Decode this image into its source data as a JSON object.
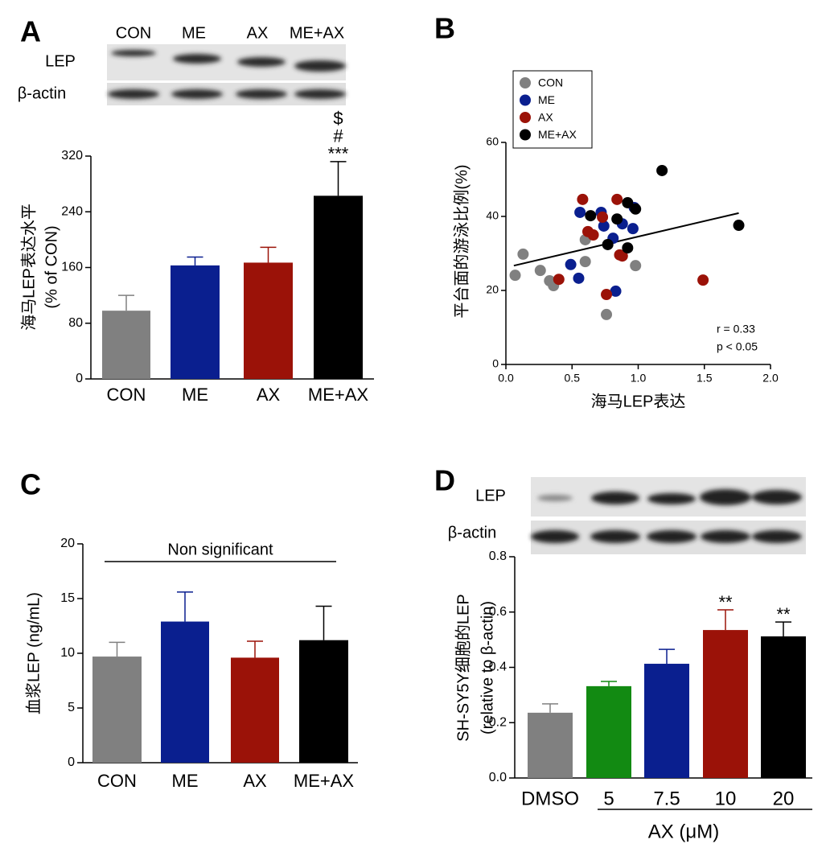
{
  "chart_data": [
    {
      "type": "bar",
      "panel_label": "A",
      "blot_labels": [
        "LEP",
        "β-actin"
      ],
      "categories": [
        "CON",
        "ME",
        "AX",
        "ME+AX"
      ],
      "values": [
        98,
        163,
        167,
        263
      ],
      "errors": [
        22,
        12,
        22,
        49
      ],
      "colors": [
        "#808080",
        "#0a1f8f",
        "#9b1208",
        "#000000"
      ],
      "significance": [
        null,
        null,
        null,
        [
          "$",
          "#",
          "***"
        ]
      ],
      "ylabel": [
        "海马LEP表达水平",
        "(% of CON)"
      ],
      "ylim": [
        0,
        320
      ],
      "yticks": [
        0,
        80,
        160,
        240,
        320
      ]
    },
    {
      "type": "scatter",
      "panel_label": "B",
      "xlabel": "海马LEP表达",
      "ylabel": "平台面的游泳比例(%)",
      "xlim": [
        0,
        2.0
      ],
      "xticks": [
        {
          "value": 0,
          "label": "0.0"
        },
        0.5,
        {
          "value": 1.0,
          "label": "1.0"
        },
        1.5,
        {
          "value": 2.0,
          "label": "2.0"
        }
      ],
      "ylim": [
        0,
        60
      ],
      "yticks": [
        0,
        20,
        40,
        60
      ],
      "legend": "upper left",
      "series": [
        {
          "name": "CON",
          "color": "#808080",
          "x": [
            0.07,
            0.13,
            0.26,
            0.33,
            0.36,
            0.6,
            0.6,
            0.76,
            0.98
          ],
          "y": [
            24.1,
            29.8,
            25.4,
            22.6,
            21.3,
            33.7,
            27.8,
            13.5,
            26.7
          ]
        },
        {
          "name": "ME",
          "color": "#0a1f8f",
          "x": [
            0.49,
            0.55,
            0.56,
            0.72,
            0.74,
            0.81,
            0.88,
            0.83,
            0.97,
            0.96
          ],
          "y": [
            27.0,
            23.3,
            41.1,
            41.1,
            37.4,
            34.1,
            38.0,
            19.8,
            42.4,
            36.7
          ]
        },
        {
          "name": "AX",
          "color": "#9b1208",
          "x": [
            0.4,
            0.58,
            0.62,
            0.66,
            0.73,
            0.76,
            0.84,
            0.86,
            0.88,
            1.49
          ],
          "y": [
            23.0,
            44.6,
            35.9,
            35.0,
            39.8,
            18.9,
            44.6,
            29.6,
            29.3,
            22.8
          ]
        },
        {
          "name": "ME+AX",
          "color": "#000000",
          "x": [
            0.64,
            0.77,
            0.84,
            0.92,
            0.92,
            0.98,
            1.18,
            1.76
          ],
          "y": [
            40.2,
            32.4,
            39.3,
            31.5,
            43.7,
            42.0,
            52.4,
            37.6
          ]
        }
      ],
      "trendline": {
        "x": [
          0.06,
          1.76
        ],
        "y": [
          26.7,
          40.9
        ]
      },
      "stats": [
        "r = 0.33",
        "p < 0.05"
      ]
    },
    {
      "type": "bar",
      "panel_label": "C",
      "categories": [
        "CON",
        "ME",
        "AX",
        "ME+AX"
      ],
      "values": [
        9.7,
        12.9,
        9.6,
        11.2
      ],
      "errors": [
        1.3,
        2.7,
        1.5,
        3.1
      ],
      "colors": [
        "#808080",
        "#0a1f8f",
        "#9b1208",
        "#000000"
      ],
      "bracket_label": "Non significant",
      "ylabel": [
        "血浆LEP (ng/mL)"
      ],
      "ylim": [
        0,
        20
      ],
      "yticks": [
        0,
        5,
        10,
        15,
        20
      ]
    },
    {
      "type": "bar",
      "panel_label": "D",
      "blot_labels": [
        "LEP",
        "β-actin"
      ],
      "categories": [
        "DMSO",
        "5",
        "7.5",
        "10",
        "20"
      ],
      "values": [
        0.236,
        0.332,
        0.413,
        0.535,
        0.512
      ],
      "errors": [
        0.032,
        0.017,
        0.052,
        0.073,
        0.052
      ],
      "colors": [
        "#808080",
        "#128a12",
        "#0a1f8f",
        "#9b1208",
        "#000000"
      ],
      "significance": [
        null,
        null,
        null,
        [
          "**"
        ],
        [
          "**"
        ]
      ],
      "ylabel": [
        "SH-SY5Y细胞的LEP",
        "(relative to β-actin)"
      ],
      "xlabel": "AX (μM)",
      "ylim": [
        0,
        0.8
      ],
      "yticks": [
        {
          "value": 0,
          "label": "0.0"
        },
        0.2,
        0.4,
        0.6,
        0.8
      ]
    }
  ]
}
